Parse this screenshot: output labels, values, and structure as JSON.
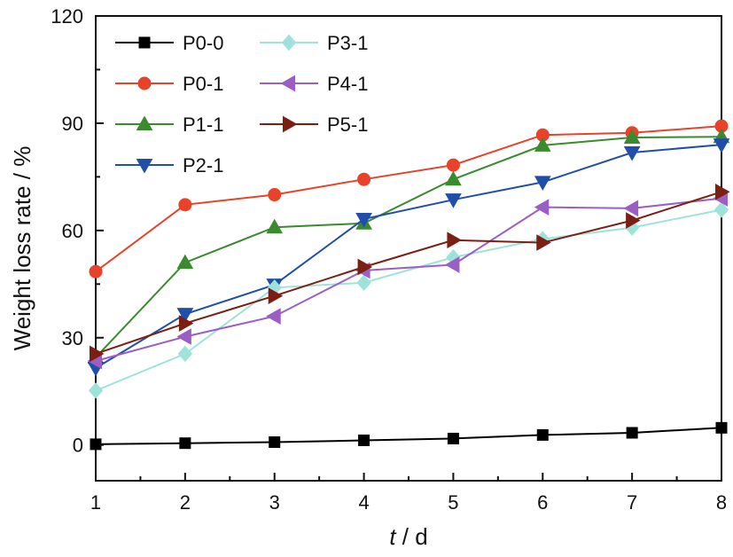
{
  "chart_data": {
    "type": "line",
    "xlabel_italic": "t",
    "xlabel_rest": " / d",
    "ylabel": "Weight loss rate / %",
    "xlim": [
      1,
      8
    ],
    "ylim": [
      -10,
      120
    ],
    "xticks": [
      1,
      2,
      3,
      4,
      5,
      6,
      7,
      8
    ],
    "yticks": [
      0,
      30,
      60,
      90,
      120
    ],
    "grid": false,
    "legend_position": "top-left",
    "x": [
      1,
      2,
      3,
      4,
      5,
      6,
      7,
      8
    ],
    "series": [
      {
        "name": "P0-0",
        "color": "#000000",
        "marker": "square",
        "values": [
          0.2,
          0.5,
          0.8,
          1.3,
          1.8,
          2.8,
          3.4,
          4.8
        ]
      },
      {
        "name": "P0-1",
        "color": "#e8432a",
        "marker": "circle",
        "values": [
          48.5,
          67.2,
          70.0,
          74.3,
          78.3,
          86.7,
          87.3,
          89.2
        ]
      },
      {
        "name": "P1-1",
        "color": "#3a8a2e",
        "marker": "triangle-up",
        "values": [
          24.5,
          51.0,
          60.9,
          62.0,
          74.3,
          83.8,
          86.0,
          86.2
        ]
      },
      {
        "name": "P2-1",
        "color": "#1f4fa8",
        "marker": "triangle-down",
        "values": [
          21.5,
          36.6,
          44.8,
          63.2,
          68.6,
          73.5,
          81.8,
          84.0
        ]
      },
      {
        "name": "P3-1",
        "color": "#9ee3d9",
        "marker": "diamond",
        "values": [
          15.2,
          25.5,
          44.0,
          45.4,
          52.5,
          57.6,
          60.8,
          65.8
        ]
      },
      {
        "name": "P4-1",
        "color": "#9b5ec4",
        "marker": "triangle-left",
        "values": [
          23.5,
          30.3,
          36.0,
          48.8,
          50.4,
          66.5,
          66.2,
          69.0
        ]
      },
      {
        "name": "P5-1",
        "color": "#7a1f12",
        "marker": "triangle-right",
        "values": [
          25.5,
          34.0,
          41.7,
          49.8,
          57.3,
          56.6,
          62.8,
          70.8
        ]
      }
    ]
  }
}
